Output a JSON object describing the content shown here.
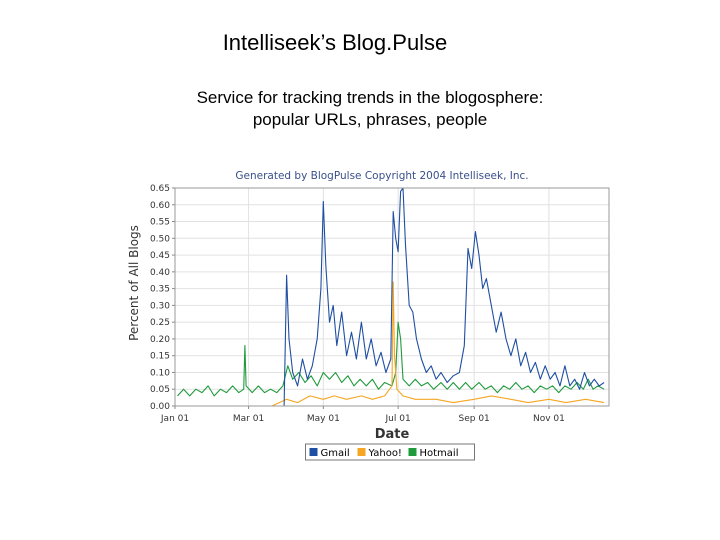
{
  "slide": {
    "title": "Intelliseek’s Blog.Pulse",
    "subtitle_line1": "Service for tracking trends in the blogosphere:",
    "subtitle_line2": "popular URLs, phrases, people"
  },
  "chart_data": {
    "type": "line",
    "title": "Generated by BlogPulse Copyright 2004 Intelliseek, Inc.",
    "xlabel": "Date",
    "ylabel": "Percent of All Blogs",
    "ylim": [
      0,
      0.65
    ],
    "yticks": [
      "0.00",
      "0.05",
      "0.10",
      "0.15",
      "0.20",
      "0.25",
      "0.30",
      "0.35",
      "0.40",
      "0.45",
      "0.50",
      "0.55",
      "0.60",
      "0.65"
    ],
    "xlim": [
      "2004-01-01",
      "2004-12-20"
    ],
    "xticks": [
      {
        "date": "2004-01-01",
        "label": "Jan 01"
      },
      {
        "date": "2004-03-01",
        "label": "Mar 01"
      },
      {
        "date": "2004-05-01",
        "label": "May 01"
      },
      {
        "date": "2004-07-01",
        "label": "Jul 01"
      },
      {
        "date": "2004-09-01",
        "label": "Sep 01"
      },
      {
        "date": "2004-11-01",
        "label": "Nov 01"
      }
    ],
    "grid": true,
    "legend_position": "bottom",
    "colors": {
      "title": "#3a4f8a",
      "grid": "#e2e2e2",
      "axis": "#888888"
    },
    "series": [
      {
        "name": "Gmail",
        "color": "#1f4fa3",
        "points": [
          [
            "2004-03-30",
            0.0
          ],
          [
            "2004-04-01",
            0.39
          ],
          [
            "2004-04-03",
            0.2
          ],
          [
            "2004-04-06",
            0.1
          ],
          [
            "2004-04-10",
            0.06
          ],
          [
            "2004-04-14",
            0.14
          ],
          [
            "2004-04-18",
            0.08
          ],
          [
            "2004-04-22",
            0.12
          ],
          [
            "2004-04-26",
            0.2
          ],
          [
            "2004-04-29",
            0.35
          ],
          [
            "2004-05-01",
            0.61
          ],
          [
            "2004-05-03",
            0.42
          ],
          [
            "2004-05-06",
            0.25
          ],
          [
            "2004-05-09",
            0.3
          ],
          [
            "2004-05-12",
            0.18
          ],
          [
            "2004-05-16",
            0.28
          ],
          [
            "2004-05-20",
            0.15
          ],
          [
            "2004-05-24",
            0.22
          ],
          [
            "2004-05-28",
            0.14
          ],
          [
            "2004-06-01",
            0.25
          ],
          [
            "2004-06-05",
            0.14
          ],
          [
            "2004-06-09",
            0.2
          ],
          [
            "2004-06-13",
            0.12
          ],
          [
            "2004-06-17",
            0.16
          ],
          [
            "2004-06-21",
            0.1
          ],
          [
            "2004-06-25",
            0.14
          ],
          [
            "2004-06-27",
            0.58
          ],
          [
            "2004-06-29",
            0.5
          ],
          [
            "2004-07-01",
            0.46
          ],
          [
            "2004-07-03",
            0.64
          ],
          [
            "2004-07-05",
            0.65
          ],
          [
            "2004-07-07",
            0.48
          ],
          [
            "2004-07-10",
            0.3
          ],
          [
            "2004-07-13",
            0.28
          ],
          [
            "2004-07-16",
            0.2
          ],
          [
            "2004-07-20",
            0.14
          ],
          [
            "2004-07-24",
            0.1
          ],
          [
            "2004-07-28",
            0.12
          ],
          [
            "2004-08-01",
            0.08
          ],
          [
            "2004-08-05",
            0.1
          ],
          [
            "2004-08-10",
            0.07
          ],
          [
            "2004-08-15",
            0.09
          ],
          [
            "2004-08-20",
            0.1
          ],
          [
            "2004-08-24",
            0.18
          ],
          [
            "2004-08-27",
            0.47
          ],
          [
            "2004-08-30",
            0.41
          ],
          [
            "2004-09-02",
            0.52
          ],
          [
            "2004-09-05",
            0.45
          ],
          [
            "2004-09-08",
            0.35
          ],
          [
            "2004-09-11",
            0.38
          ],
          [
            "2004-09-15",
            0.3
          ],
          [
            "2004-09-19",
            0.22
          ],
          [
            "2004-09-23",
            0.28
          ],
          [
            "2004-09-27",
            0.2
          ],
          [
            "2004-10-01",
            0.15
          ],
          [
            "2004-10-05",
            0.2
          ],
          [
            "2004-10-09",
            0.12
          ],
          [
            "2004-10-13",
            0.16
          ],
          [
            "2004-10-17",
            0.1
          ],
          [
            "2004-10-21",
            0.13
          ],
          [
            "2004-10-25",
            0.08
          ],
          [
            "2004-10-29",
            0.12
          ],
          [
            "2004-11-02",
            0.08
          ],
          [
            "2004-11-06",
            0.1
          ],
          [
            "2004-11-10",
            0.06
          ],
          [
            "2004-11-14",
            0.12
          ],
          [
            "2004-11-18",
            0.06
          ],
          [
            "2004-11-22",
            0.08
          ],
          [
            "2004-11-26",
            0.05
          ],
          [
            "2004-11-30",
            0.1
          ],
          [
            "2004-12-04",
            0.06
          ],
          [
            "2004-12-08",
            0.08
          ],
          [
            "2004-12-12",
            0.06
          ],
          [
            "2004-12-16",
            0.07
          ]
        ]
      },
      {
        "name": "Yahoo!",
        "color": "#f5a623",
        "points": [
          [
            "2004-01-03",
            0.0
          ],
          [
            "2004-02-01",
            0.0
          ],
          [
            "2004-03-01",
            0.0
          ],
          [
            "2004-03-20",
            0.0
          ],
          [
            "2004-04-01",
            0.02
          ],
          [
            "2004-04-10",
            0.01
          ],
          [
            "2004-04-20",
            0.03
          ],
          [
            "2004-05-01",
            0.02
          ],
          [
            "2004-05-10",
            0.03
          ],
          [
            "2004-05-20",
            0.02
          ],
          [
            "2004-06-01",
            0.03
          ],
          [
            "2004-06-10",
            0.02
          ],
          [
            "2004-06-20",
            0.03
          ],
          [
            "2004-06-26",
            0.06
          ],
          [
            "2004-06-27",
            0.37
          ],
          [
            "2004-06-28",
            0.15
          ],
          [
            "2004-06-30",
            0.05
          ],
          [
            "2004-07-05",
            0.03
          ],
          [
            "2004-07-15",
            0.02
          ],
          [
            "2004-08-01",
            0.02
          ],
          [
            "2004-08-15",
            0.01
          ],
          [
            "2004-09-01",
            0.02
          ],
          [
            "2004-09-15",
            0.03
          ],
          [
            "2004-10-01",
            0.02
          ],
          [
            "2004-10-15",
            0.01
          ],
          [
            "2004-11-01",
            0.02
          ],
          [
            "2004-11-15",
            0.01
          ],
          [
            "2004-12-01",
            0.02
          ],
          [
            "2004-12-16",
            0.01
          ]
        ]
      },
      {
        "name": "Hotmail",
        "color": "#1f9a3c",
        "points": [
          [
            "2004-01-03",
            0.03
          ],
          [
            "2004-01-08",
            0.05
          ],
          [
            "2004-01-13",
            0.03
          ],
          [
            "2004-01-18",
            0.05
          ],
          [
            "2004-01-23",
            0.04
          ],
          [
            "2004-01-28",
            0.06
          ],
          [
            "2004-02-02",
            0.03
          ],
          [
            "2004-02-07",
            0.05
          ],
          [
            "2004-02-12",
            0.04
          ],
          [
            "2004-02-17",
            0.06
          ],
          [
            "2004-02-22",
            0.04
          ],
          [
            "2004-02-26",
            0.05
          ],
          [
            "2004-02-27",
            0.18
          ],
          [
            "2004-02-28",
            0.06
          ],
          [
            "2004-03-04",
            0.04
          ],
          [
            "2004-03-09",
            0.06
          ],
          [
            "2004-03-14",
            0.04
          ],
          [
            "2004-03-19",
            0.05
          ],
          [
            "2004-03-24",
            0.04
          ],
          [
            "2004-03-29",
            0.06
          ],
          [
            "2004-04-02",
            0.12
          ],
          [
            "2004-04-06",
            0.08
          ],
          [
            "2004-04-11",
            0.1
          ],
          [
            "2004-04-16",
            0.07
          ],
          [
            "2004-04-21",
            0.09
          ],
          [
            "2004-04-26",
            0.06
          ],
          [
            "2004-05-01",
            0.1
          ],
          [
            "2004-05-06",
            0.08
          ],
          [
            "2004-05-11",
            0.1
          ],
          [
            "2004-05-16",
            0.07
          ],
          [
            "2004-05-21",
            0.09
          ],
          [
            "2004-05-26",
            0.06
          ],
          [
            "2004-05-31",
            0.08
          ],
          [
            "2004-06-05",
            0.06
          ],
          [
            "2004-06-10",
            0.08
          ],
          [
            "2004-06-15",
            0.05
          ],
          [
            "2004-06-20",
            0.07
          ],
          [
            "2004-06-26",
            0.06
          ],
          [
            "2004-06-29",
            0.1
          ],
          [
            "2004-07-01",
            0.25
          ],
          [
            "2004-07-03",
            0.2
          ],
          [
            "2004-07-05",
            0.08
          ],
          [
            "2004-07-10",
            0.06
          ],
          [
            "2004-07-15",
            0.08
          ],
          [
            "2004-07-20",
            0.06
          ],
          [
            "2004-07-25",
            0.07
          ],
          [
            "2004-07-30",
            0.05
          ],
          [
            "2004-08-05",
            0.07
          ],
          [
            "2004-08-10",
            0.05
          ],
          [
            "2004-08-15",
            0.07
          ],
          [
            "2004-08-20",
            0.05
          ],
          [
            "2004-08-25",
            0.07
          ],
          [
            "2004-08-30",
            0.05
          ],
          [
            "2004-09-05",
            0.07
          ],
          [
            "2004-09-10",
            0.05
          ],
          [
            "2004-09-15",
            0.06
          ],
          [
            "2004-09-20",
            0.04
          ],
          [
            "2004-09-25",
            0.06
          ],
          [
            "2004-09-30",
            0.05
          ],
          [
            "2004-10-05",
            0.07
          ],
          [
            "2004-10-10",
            0.05
          ],
          [
            "2004-10-15",
            0.06
          ],
          [
            "2004-10-20",
            0.04
          ],
          [
            "2004-10-25",
            0.06
          ],
          [
            "2004-10-30",
            0.05
          ],
          [
            "2004-11-04",
            0.06
          ],
          [
            "2004-11-09",
            0.04
          ],
          [
            "2004-11-14",
            0.06
          ],
          [
            "2004-11-19",
            0.05
          ],
          [
            "2004-11-24",
            0.07
          ],
          [
            "2004-11-29",
            0.05
          ],
          [
            "2004-12-03",
            0.08
          ],
          [
            "2004-12-07",
            0.05
          ],
          [
            "2004-12-11",
            0.06
          ],
          [
            "2004-12-16",
            0.05
          ]
        ]
      }
    ]
  }
}
